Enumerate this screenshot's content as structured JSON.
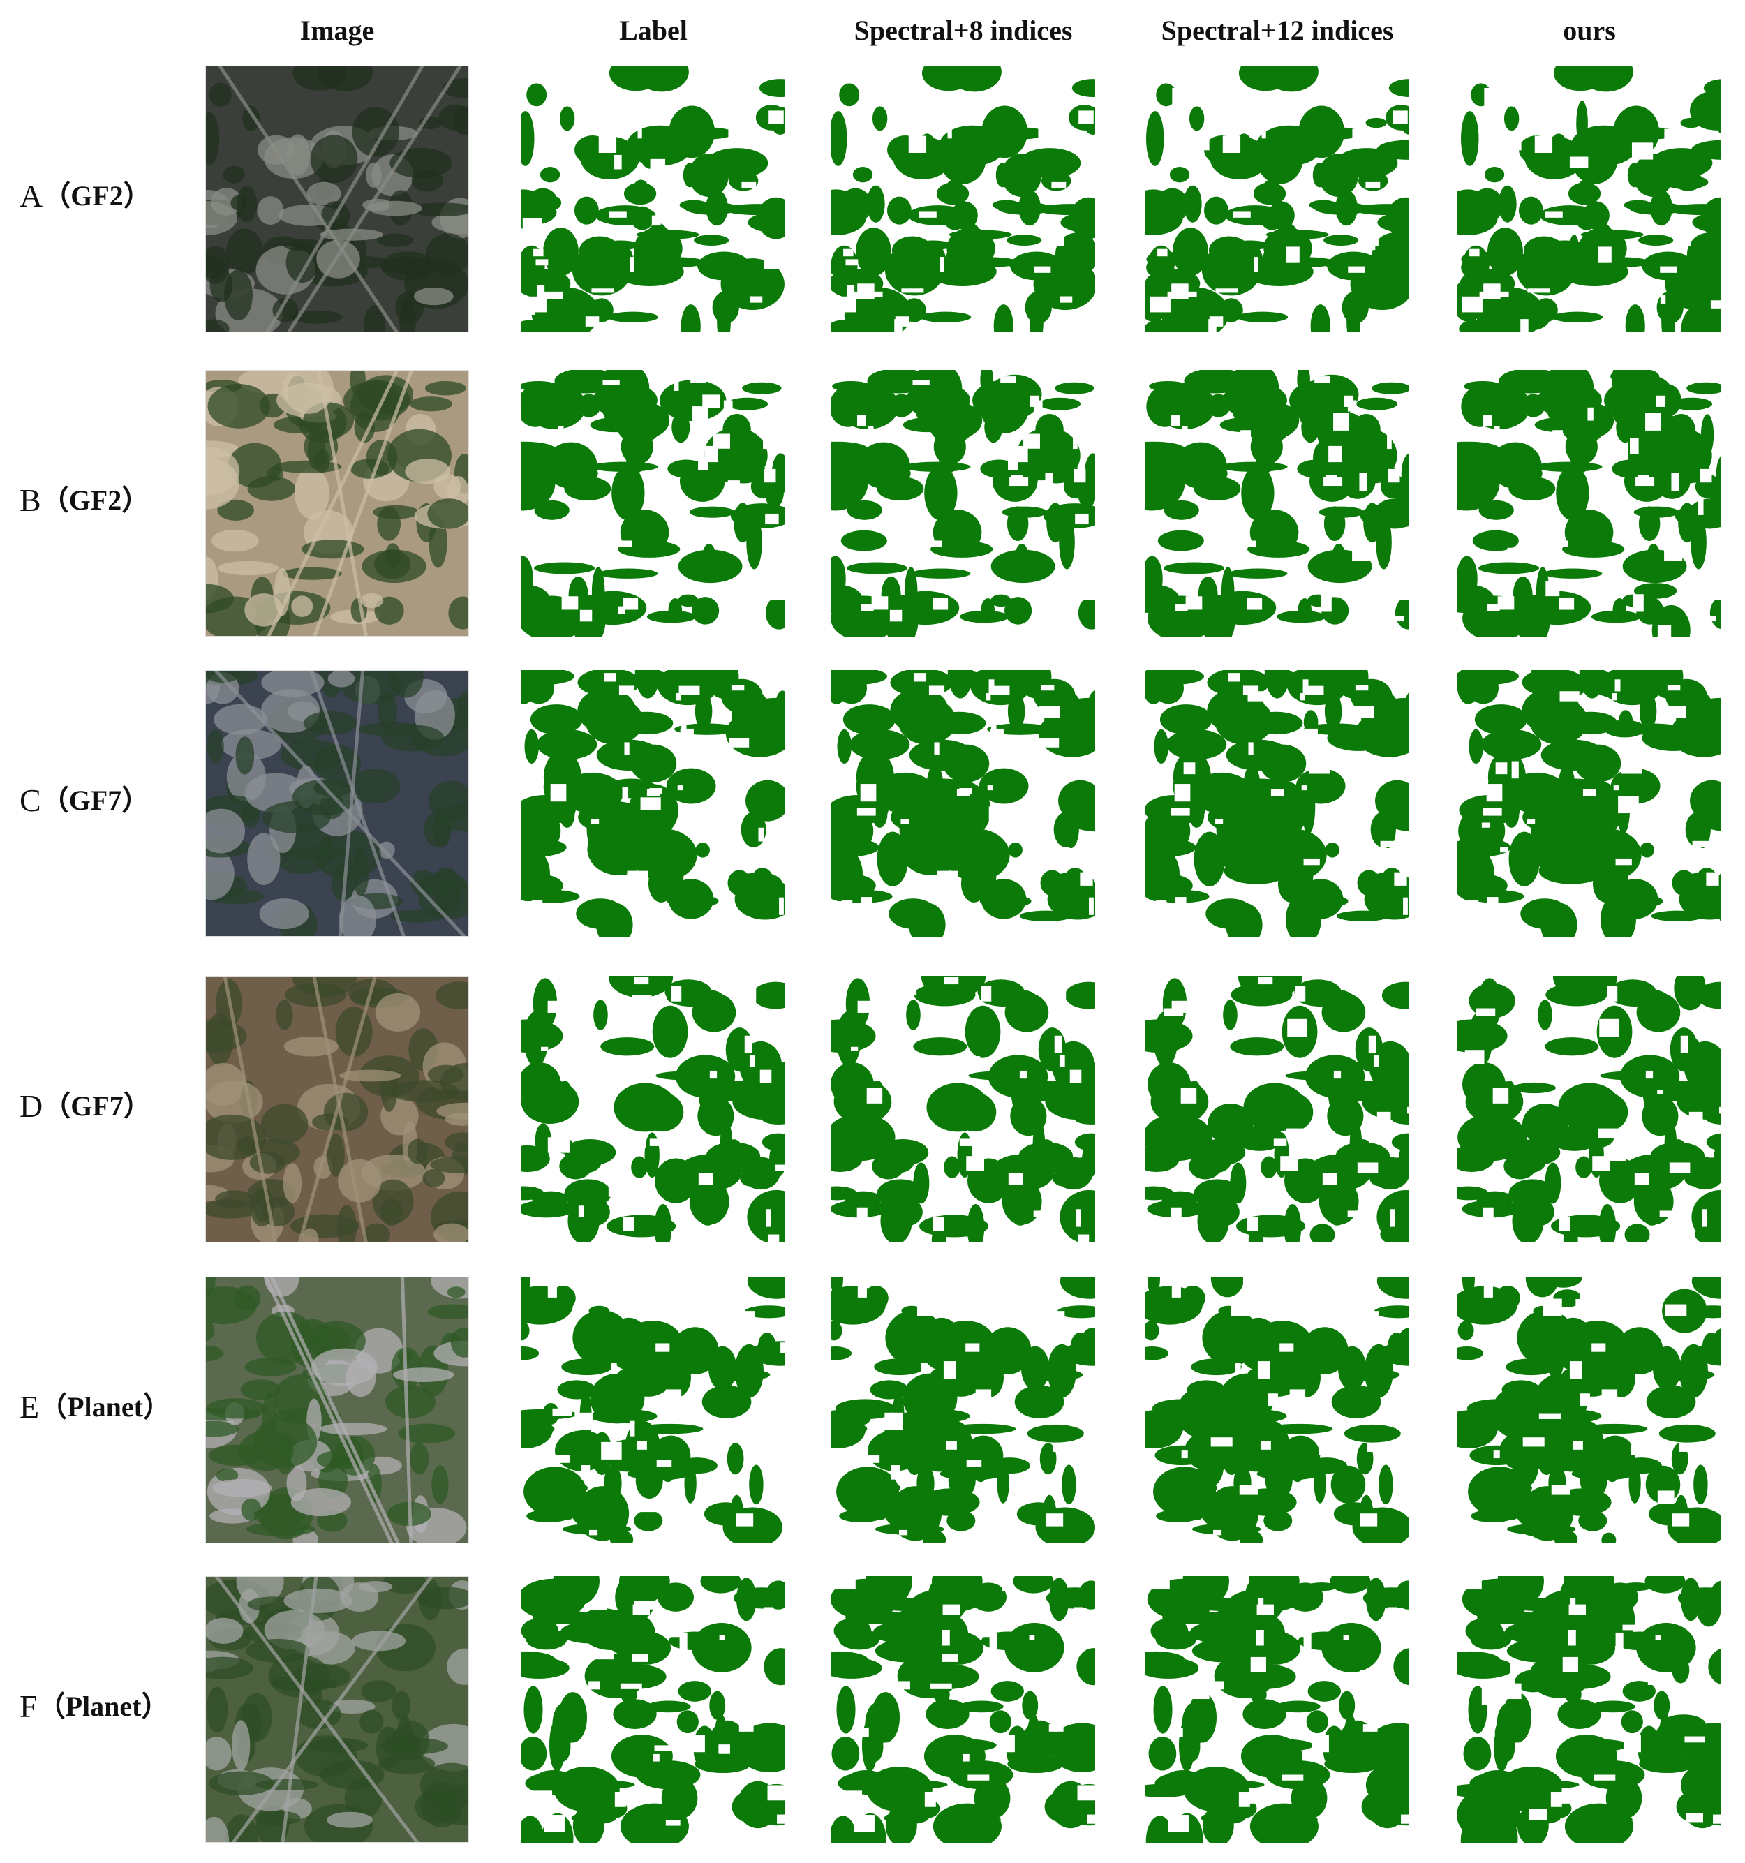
{
  "header": {
    "columns": [
      "Image",
      "Label",
      "Spectral+8 indices",
      "Spectral+12 indices",
      "ours"
    ]
  },
  "rows": [
    {
      "letter": "A",
      "source": "（GF2）"
    },
    {
      "letter": "B",
      "source": "（GF2）"
    },
    {
      "letter": "C",
      "source": "（GF7）"
    },
    {
      "letter": "D",
      "source": "（GF7）"
    },
    {
      "letter": "E",
      "source": "（Planet）"
    },
    {
      "letter": "F",
      "source": "（Planet）"
    }
  ]
}
